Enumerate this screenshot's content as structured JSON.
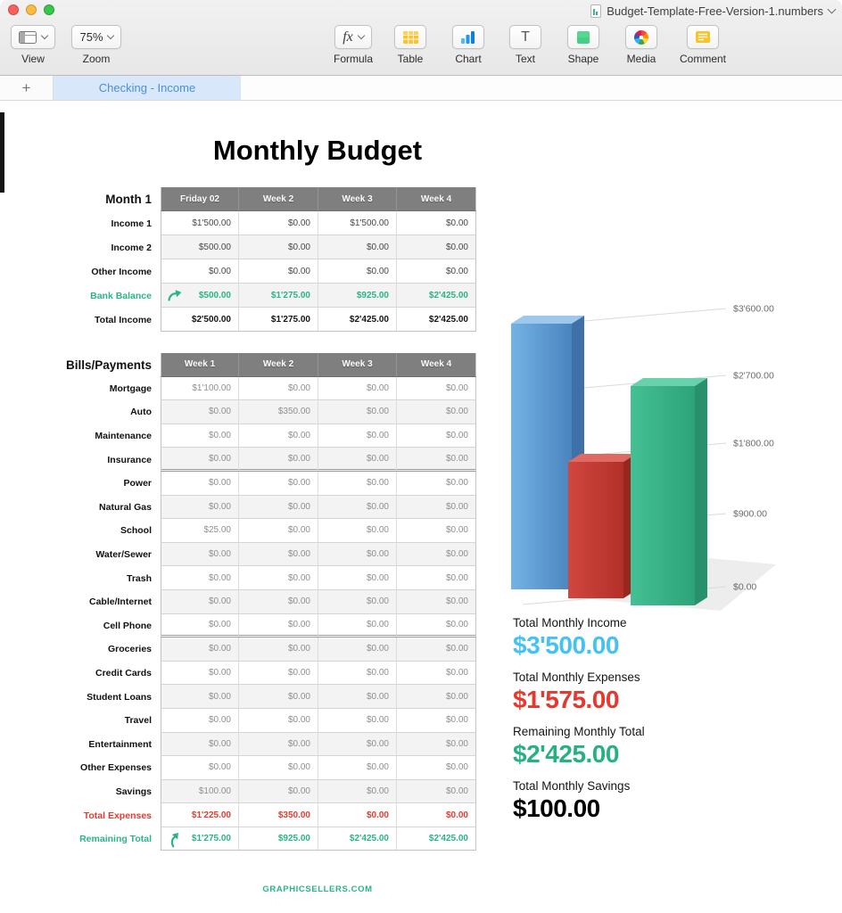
{
  "titlebar": {
    "title": "Budget-Template-Free-Version-1.numbers"
  },
  "toolbar": {
    "view": {
      "label": "View"
    },
    "zoom": {
      "label": "Zoom",
      "value": "75%"
    },
    "formula_glyph": "fx",
    "text_glyph": "T",
    "items": [
      {
        "label": "Formula",
        "icon": "fx-icon"
      },
      {
        "label": "Table",
        "icon": "table-icon"
      },
      {
        "label": "Chart",
        "icon": "chart-icon"
      },
      {
        "label": "Text",
        "icon": "text-icon"
      },
      {
        "label": "Shape",
        "icon": "shape-icon"
      },
      {
        "label": "Media",
        "icon": "media-icon"
      },
      {
        "label": "Comment",
        "icon": "comment-icon"
      }
    ]
  },
  "tabbar": {
    "add_label": "+",
    "tabs": [
      {
        "label": "Checking - Income",
        "active": true
      }
    ]
  },
  "sheet": {
    "title": "Monthly Budget",
    "footer": "GRAPHICSELLERS.COM",
    "income_table": {
      "label": "Month 1",
      "columns": [
        "Friday 02",
        "Week 2",
        "Week 3",
        "Week 4"
      ],
      "rows": [
        {
          "label": "Income 1",
          "values": [
            "$1'500.00",
            "$0.00",
            "$1'500.00",
            "$0.00"
          ]
        },
        {
          "label": "Income 2",
          "values": [
            "$500.00",
            "$0.00",
            "$0.00",
            "$0.00"
          ]
        },
        {
          "label": "Other Income",
          "values": [
            "$0.00",
            "$0.00",
            "$0.00",
            "$0.00"
          ]
        },
        {
          "label": "Bank Balance",
          "values": [
            "$500.00",
            "$1'275.00",
            "$925.00",
            "$2'425.00"
          ],
          "style": "teal",
          "icon": "arrow-right"
        },
        {
          "label": "Total Income",
          "values": [
            "$2'500.00",
            "$1'275.00",
            "$2'425.00",
            "$2'425.00"
          ],
          "style": "bold"
        }
      ]
    },
    "bills_table": {
      "label": "Bills/Payments",
      "columns": [
        "Week 1",
        "Week 2",
        "Week 3",
        "Week 4"
      ],
      "rows": [
        {
          "label": "Mortgage",
          "values": [
            "$1'100.00",
            "$0.00",
            "$0.00",
            "$0.00"
          ]
        },
        {
          "label": "Auto",
          "values": [
            "$0.00",
            "$350.00",
            "$0.00",
            "$0.00"
          ]
        },
        {
          "label": "Maintenance",
          "values": [
            "$0.00",
            "$0.00",
            "$0.00",
            "$0.00"
          ]
        },
        {
          "label": "Insurance",
          "values": [
            "$0.00",
            "$0.00",
            "$0.00",
            "$0.00"
          ],
          "thick_after": true
        },
        {
          "label": "Power",
          "values": [
            "$0.00",
            "$0.00",
            "$0.00",
            "$0.00"
          ]
        },
        {
          "label": "Natural Gas",
          "values": [
            "$0.00",
            "$0.00",
            "$0.00",
            "$0.00"
          ]
        },
        {
          "label": "School",
          "values": [
            "$25.00",
            "$0.00",
            "$0.00",
            "$0.00"
          ]
        },
        {
          "label": "Water/Sewer",
          "values": [
            "$0.00",
            "$0.00",
            "$0.00",
            "$0.00"
          ]
        },
        {
          "label": "Trash",
          "values": [
            "$0.00",
            "$0.00",
            "$0.00",
            "$0.00"
          ]
        },
        {
          "label": "Cable/Internet",
          "values": [
            "$0.00",
            "$0.00",
            "$0.00",
            "$0.00"
          ]
        },
        {
          "label": "Cell Phone",
          "values": [
            "$0.00",
            "$0.00",
            "$0.00",
            "$0.00"
          ],
          "thick_after": true
        },
        {
          "label": "Groceries",
          "values": [
            "$0.00",
            "$0.00",
            "$0.00",
            "$0.00"
          ]
        },
        {
          "label": "Credit Cards",
          "values": [
            "$0.00",
            "$0.00",
            "$0.00",
            "$0.00"
          ]
        },
        {
          "label": "Student Loans",
          "values": [
            "$0.00",
            "$0.00",
            "$0.00",
            "$0.00"
          ]
        },
        {
          "label": "Travel",
          "values": [
            "$0.00",
            "$0.00",
            "$0.00",
            "$0.00"
          ]
        },
        {
          "label": "Entertainment",
          "values": [
            "$0.00",
            "$0.00",
            "$0.00",
            "$0.00"
          ]
        },
        {
          "label": "Other Expenses",
          "values": [
            "$0.00",
            "$0.00",
            "$0.00",
            "$0.00"
          ]
        },
        {
          "label": "Savings",
          "values": [
            "$100.00",
            "$0.00",
            "$0.00",
            "$0.00"
          ]
        },
        {
          "label": "Total Expenses",
          "values": [
            "$1'225.00",
            "$350.00",
            "$0.00",
            "$0.00"
          ],
          "style": "red"
        },
        {
          "label": "Remaining Total",
          "values": [
            "$1'275.00",
            "$925.00",
            "$2'425.00",
            "$2'425.00"
          ],
          "style": "teal",
          "icon": "arrow-up",
          "plain_bg": true
        }
      ]
    },
    "summary": [
      {
        "label": "Total Monthly Income",
        "value": "$3'500.00",
        "color": "#45c2f1"
      },
      {
        "label": "Total Monthly Expenses",
        "value": "$1'575.00",
        "color": "#e8382d"
      },
      {
        "label": "Remaining Monthly Total",
        "value": "$2'425.00",
        "color": "#27b183"
      },
      {
        "label": "Total Monthly Savings",
        "value": "$100.00",
        "color": "#000000"
      }
    ]
  },
  "chart_data": {
    "type": "bar",
    "style": "3d",
    "categories": [
      "Total Monthly Income",
      "Total Monthly Expenses",
      "Remaining Monthly Total"
    ],
    "values": [
      3500,
      1575,
      2425
    ],
    "bar_colors": [
      "#5b9bd5",
      "#c23b33",
      "#35b489"
    ],
    "yticks": [
      "$0.00",
      "$900.00",
      "$1'800.00",
      "$2'700.00",
      "$3'600.00"
    ],
    "ylim": [
      0,
      3600
    ],
    "grid": true,
    "legend": "none",
    "title": ""
  },
  "colors": {
    "accent_teal": "#2bb389",
    "accent_red": "#e23b30",
    "tab_blue": "#4a90d8",
    "table_header_gray": "#7f7f7f"
  }
}
